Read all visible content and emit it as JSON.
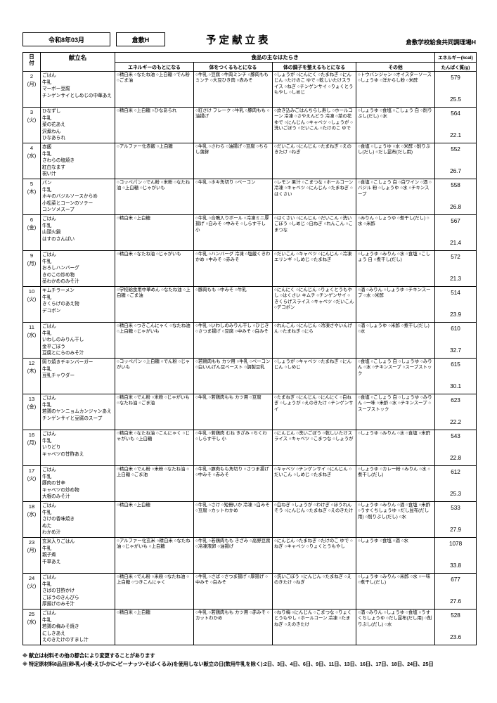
{
  "header": {
    "month_box": "令和8年03月",
    "school_box": "倉敷H",
    "title": "予定献立表",
    "facility": "倉敷学校給食共同調理場H"
  },
  "table_head": {
    "date": "日付",
    "date_line1": "日",
    "date_line2": "付",
    "menu": "献立名",
    "group": "食品の主なはたらき",
    "energy_source": "エネルギーのもとになる",
    "body_builder": "体をつくるもとになる",
    "condition": "体の調子を整えるもとになる",
    "other": "その他",
    "kcal": "エネルギー(kcal)",
    "protein": "たんぱく質(g)"
  },
  "rows": [
    {
      "day": "2",
      "dow": "(月)",
      "menu": [
        "ごはん",
        "牛乳",
        "マーボー豆腐",
        "チンゲンサイとしめじの中華あえ"
      ],
      "energy_source": "○精白米 ○なたね油 ○上白糖 ○でん粉 ○ごま油",
      "body": "○牛乳 ○豆腐 ○牛肉ミンチ ○豚肉ももミンチ ○大豆ひき肉 ○赤みそ",
      "condition": "○しょうが ○にんにく ○たまねぎ ○にんじん ○たけのこ ゆで ○乾しいたけスライス ○ねぎ ○チンゲンサイ ○りょくとうもやし ○しめじ",
      "other": "○トウバンジャン ○オイスターソース ○しょうゆ ○洋からし粉 ○米酢",
      "kcal": "579",
      "protein": "25.5"
    },
    {
      "day": "3",
      "dow": "(火)",
      "menu": [
        "ひなずし",
        "牛乳",
        "菜の花あえ",
        "沢煮わん",
        "ひなあられ"
      ],
      "energy_source": "○精白米 ○上白糖 ○ひなあられ",
      "body": "○紅さけ フレーク ○牛乳 ○豚肉もも ○油揚げ",
      "condition": "○炊き込みごはんちらし寿し ○ホールコーン 冷凍 ○さやえんどう 冷凍 ○菜の花ゆで ○にんじん ○キャベツ ○しょうが ○洗いごぼう ○だいこん ○たけのこ ゆで",
      "other": "○しょうゆ ○食塩 ○こしょう 白 ○削りぶし(だし) ○水",
      "kcal": "564",
      "protein": "22.1"
    },
    {
      "day": "4",
      "dow": "(水)",
      "menu": [
        "赤飯",
        "牛乳",
        "さわらの塩焼き",
        "紅白なます",
        "祝い汁"
      ],
      "energy_source": "○アルファー化赤飯 ○上白糖",
      "body": "○牛乳 ○さわら ○油揚げ ○豆腐 ○ちらし蒲鉾",
      "condition": "○だいこん ○にんじん ○たまねぎ ○えのきたけ ○ねぎ",
      "other": "○食塩 ○しょうゆ ○水 ○米酢 ○削りぶし(だし) ○だし昆布(だし用)",
      "kcal": "552",
      "protein": "26.7"
    },
    {
      "day": "5",
      "dow": "(木)",
      "menu": [
        "パン",
        "牛乳",
        "ホキのバジルソースからめ",
        "小松菜とコーンのソテー",
        "コンソメスープ"
      ],
      "energy_source": "○コッペパン ○でん粉 ○米粉 ○なたね油 ○上白糖 ○じゃがいも",
      "body": "○牛乳 ○ホキ角切り ○ベーコン",
      "condition": "○レモン 果汁 ○こまつな ○ホールコーン 冷凍 ○キャベツ ○にんじん ○たまねぎ ○はくさい",
      "other": "○食塩 ○こしょう 白 ○白ワイン ○酒 ○バジル 粉 ○しょうゆ ○水 ○チキンスープ",
      "kcal": "558",
      "protein": "26.8"
    },
    {
      "day": "6",
      "dow": "(金)",
      "menu": [
        "ごはん",
        "牛乳",
        "山頭火鍋",
        "はすのさんばい"
      ],
      "energy_source": "○精白米 ○上白糖",
      "body": "○牛乳 ○合鴨入りボール ○冷凍ミニ厚揚げ ○白みそ ○中みそ ○しらす干し 小",
      "condition": "○はくさい ○にんじん ○だいこん ○洗いごぼう ○しめじ ○白ねぎ ○れんこん ○こまつな",
      "other": "○みりん ○しょうゆ ○煮干し(だし) ○水 ○米酢",
      "kcal": "567",
      "protein": "21.4"
    },
    {
      "day": "9",
      "dow": "(月)",
      "menu": [
        "ごはん",
        "牛乳",
        "おろしハンバーグ",
        "きのこの炒め物",
        "茎わかめのみそ汁"
      ],
      "energy_source": "○精白米 ○なたね油 ○じゃがいも",
      "body": "○牛乳 ○ハンバーグ 冷凍 ○塩蔵くきわかめ ○中みそ ○赤みそ",
      "condition": "○だいこん ○キャベツ ○にんじん ○冷凍エリンギ ○しめじ ○たまねぎ",
      "other": "○しょうゆ ○みりん ○水 ○食塩 ○こしょう 白 ○煮干し(だし)",
      "kcal": "572",
      "protein": "21.3"
    },
    {
      "day": "10",
      "dow": "(火)",
      "menu": [
        "キムチラーメン",
        "牛乳",
        "きくらげのあえ物",
        "デコポン"
      ],
      "energy_source": "○学校給食用中華めん ○なたね油 ○上白糖 ○ごま油",
      "body": "○豚肉もも ○中みそ ○牛乳",
      "condition": "○にんにく ○にんじん ○りょくとうもやし ○はくさい キムチ ○チンゲンサイ ○きくらげスライス ○キャベツ ○だいこん ○デコポン",
      "other": "○酒 ○みりん ○しょうゆ ○チキンスープ ○水 ○米酢",
      "kcal": "514",
      "protein": "23.9"
    },
    {
      "day": "11",
      "dow": "(水)",
      "menu": [
        "ごはん",
        "牛乳",
        "いわしのみりん干し",
        "金平ごぼう",
        "豆腐とにらのみそ汁"
      ],
      "energy_source": "○精白米 ○つきこんにゃく ○なたね油 ○上白糖 ○じゃがいも",
      "body": "○牛乳 ○いわしのみりん干し ○ひじき ○さつま揚げ ○豆腐 ○中みそ ○白みそ",
      "condition": "○れんこん ○にんじん ○冷凍さやいんげん ○たまねぎ ○にら",
      "other": "○酒 ○しょうゆ ○米酢 ○煮干し(だし) ○水",
      "kcal": "610",
      "protein": "32.7"
    },
    {
      "day": "12",
      "dow": "(木)",
      "menu": [
        "照り焼きチキンバーガー",
        "牛乳",
        "豆乳チャウダー"
      ],
      "energy_source": "○コッペパン ○上白糖 ○でん粉 ○じゃがいも",
      "body": "○若鶏肉もも カツ用 ○牛乳 ○ベーコン ○白いんげん豆ペースト ○調製豆乳",
      "condition": "○しょうが ○キャベツ ○たまねぎ ○にんじん ○しめじ",
      "other": "○食塩 ○こしょう 白 ○しょうゆ ○みりん ○水 ○チキンスープ ○スープストック",
      "kcal": "615",
      "protein": "30.1"
    },
    {
      "day": "13",
      "dow": "(金)",
      "menu": [
        "ごはん",
        "牛乳",
        "若鶏のヤンニョムカンジャンあえ",
        "チンゲンサイと豆腐のスープ"
      ],
      "energy_source": "○精白米 ○でん粉 ○米粉 ○じゃがいも ○なたね油 ○ごま油",
      "body": "○牛乳 ○若鶏肉もも カツ用 ○豆腐",
      "condition": "○たまねぎ ○にんじん ○にんにく ○白ねぎ ○しょうが ○えのきたけ ○チンゲンサイ",
      "other": "○食塩 ○こしょう 白 ○しょうゆ ○みりん ○一味 ○米酢 ○水 ○チキンスープ ○スープストック",
      "kcal": "623",
      "protein": "22.2"
    },
    {
      "day": "16",
      "dow": "(月)",
      "menu": [
        "ごはん",
        "牛乳",
        "いりどり",
        "キャベツの甘酢あえ"
      ],
      "energy_source": "○精白米 ○なたね油 ○こんにゃく ○じゃがいも ○上白糖",
      "body": "○牛乳 ○若鶏肉 むね きざみ ○ちくわ ○しらす干し 小",
      "condition": "○にんじん ○洗いごぼう ○乾しいたけスライス ○キャベツ ○こまつな ○しょうが",
      "other": "○しょうゆ ○みりん ○水 ○食塩 ○米酢",
      "kcal": "543",
      "protein": "22.8"
    },
    {
      "day": "17",
      "dow": "(火)",
      "menu": [
        "ごはん",
        "牛乳",
        "豚肉の甘辛",
        "キャベツの炒め物",
        "大根のみそ汁"
      ],
      "energy_source": "○精白米 ○でん粉 ○米粉 ○なたね油 ○上白糖 ○ごま油",
      "body": "○牛乳 ○豚肉もも角切り ○さつま揚げ ○中みそ ○赤みそ",
      "condition": "○キャベツ ○チンゲンサイ ○にんじん ○だいこん ○しめじ ○たまねぎ",
      "other": "○しょうゆ ○カレー粉 ○みりん ○水 ○煮干し(だし)",
      "kcal": "612",
      "protein": "25.3"
    },
    {
      "day": "18",
      "dow": "(水)",
      "menu": [
        "ごはん",
        "牛乳",
        "さけの香味焼き",
        "ぬた",
        "わかめ汁"
      ],
      "energy_source": "○精白米 ○上白糖",
      "body": "○牛乳 ○さけ ○短冊いか 冷凍 ○白みそ ○豆腐 ○カットわかめ",
      "condition": "○白ねぎ ○しょうが ○わけぎ ○ほうれんそう ○にんじん ○たまねぎ ○えのきたけ",
      "other": "○しょうゆ ○みりん ○酒 ○食塩 ○米酢 ○うすくちしょうゆ ○だし昆布(だし用) ○削りぶし(だし) ○水",
      "kcal": "533",
      "protein": "27.9"
    },
    {
      "day": "23",
      "dow": "(月)",
      "menu": [
        "玄米入りごはん",
        "牛乳",
        "親子煮",
        "千草あえ"
      ],
      "energy_source": "○アルファー化玄米 ○精白米 ○なたね油 ○じゃがいも ○上白糖",
      "body": "○牛乳 ○若鶏肉もも きざみ ○高野豆腐 ○冷凍液卵 ○油揚げ",
      "condition": "○にんじん ○たまねぎ ○たけのこ ゆで ○ねぎ ○キャベツ ○りょくとうもやし",
      "other": "○しょうゆ ○食塩 ○酒 ○水",
      "kcal": "1078",
      "protein": "33.8"
    },
    {
      "day": "24",
      "dow": "(火)",
      "menu": [
        "ごはん",
        "牛乳",
        "さばの甘酢かけ",
        "ごぼうのきんぴら",
        "厚揚げのみそ汁"
      ],
      "energy_source": "○精白米 ○でん粉 ○米粉 ○なたね油 ○上白糖 ○つきこんにゃく",
      "body": "○牛乳 ○さば ○さつま揚げ ○厚揚げ ○中みそ ○白みそ",
      "condition": "○洗いごぼう ○にんじん ○たまねぎ ○えのきたけ ○ねぎ",
      "other": "○しょうゆ ○みりん ○米酢 ○水 ○一味 ○煮干し(だし)",
      "kcal": "677",
      "protein": "27.6"
    },
    {
      "day": "25",
      "dow": "(水)",
      "menu": [
        "ごはん",
        "牛乳",
        "若鶏の梅みそ焼き",
        "にしきあえ",
        "えのきたけのすまし汁"
      ],
      "energy_source": "○精白米 ○上白糖",
      "body": "○牛乳 ○若鶏肉もも カツ用 ○赤みそ ○カットわかめ",
      "condition": "○ねり梅 ○にんじん ○こまつな ○りょくとうもやし ○ホールコーン 冷凍 ○たまねぎ ○えのきたけ",
      "other": "○酒 ○みりん ○しょうゆ ○食塩 ○うすくちしょうゆ ○だし昆布(だし用) ○削りぶし(だし) ○水",
      "kcal": "528",
      "protein": "23.6"
    }
  ],
  "notes": [
    "※ 献立は材料その他の都合により変更することがあります",
    "※ 特定原材料8品目(卵・乳・小麦・えび・かに・ピーナッツ・そば・くるみ)を使用しない献立の日(飲用牛乳を除く):2日、3日、4日、6日、9日、11日、13日、16日、17日、18日、24日、25日"
  ]
}
